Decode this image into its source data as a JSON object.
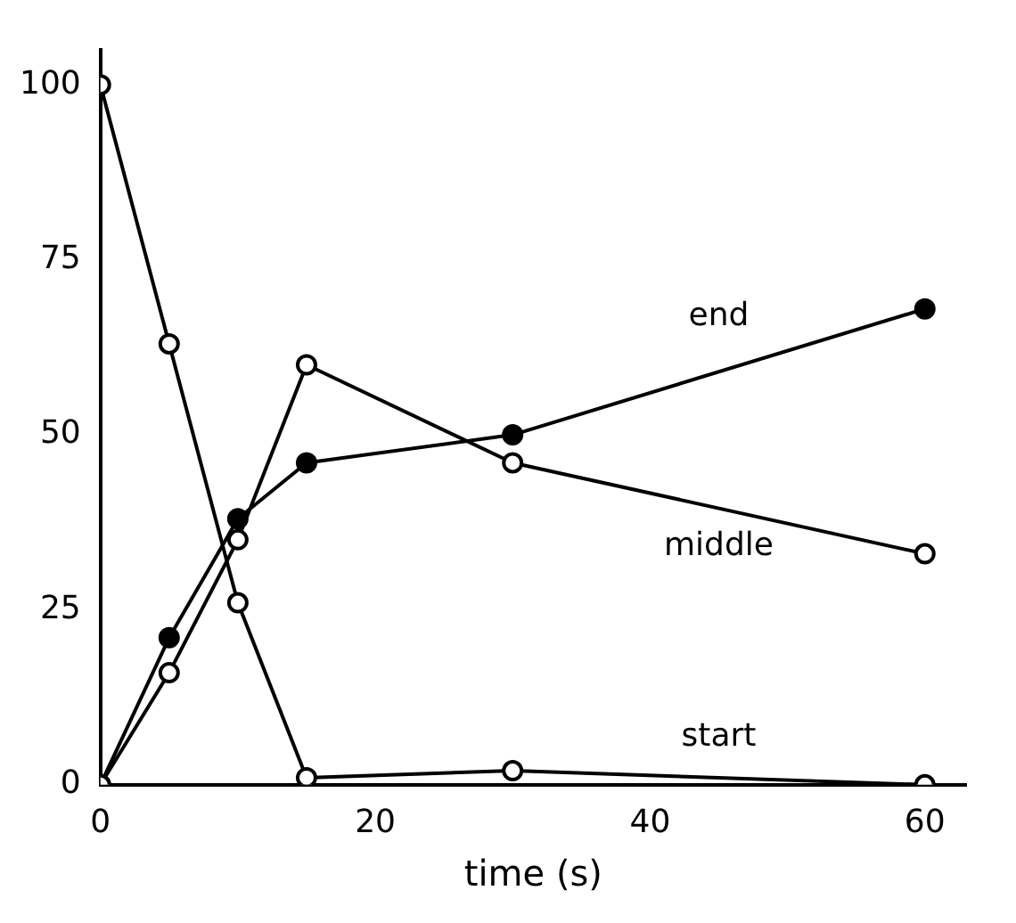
{
  "chart_data": {
    "type": "line",
    "xlabel": "time (s)",
    "x": [
      0,
      5,
      10,
      15,
      30,
      60
    ],
    "series": [
      {
        "name": "start",
        "color": "#000000",
        "values": [
          100,
          63,
          26,
          1,
          2,
          0
        ]
      },
      {
        "name": "middle",
        "color": "#000000",
        "values": [
          0,
          16,
          35,
          60,
          46,
          33
        ]
      },
      {
        "name": "end",
        "color": "#000000",
        "values": [
          0,
          21,
          38,
          46,
          50,
          68
        ]
      }
    ],
    "xlim": [
      0,
      63
    ],
    "ylim": [
      0,
      105
    ],
    "xticks": [
      0,
      20,
      40,
      60
    ],
    "yticks": [
      0,
      25,
      50,
      75,
      100
    ],
    "grid": false,
    "legend": false,
    "marker": "circle",
    "line_style": "solid"
  }
}
